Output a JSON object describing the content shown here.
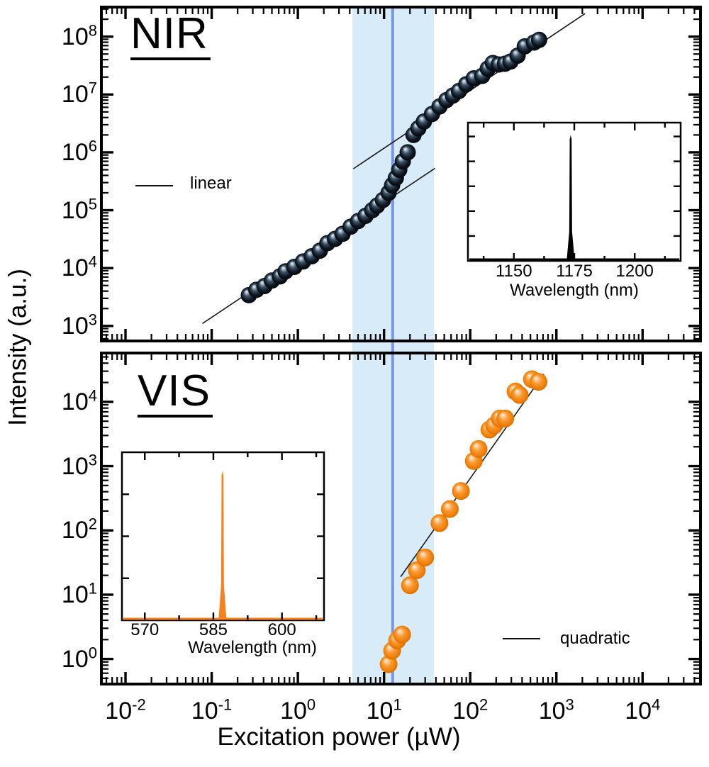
{
  "figure": {
    "x_axis_title": "Excitation power (µW)",
    "y_axis_title": "Intensity (a.u.)",
    "highlight_band": {
      "x_min_uW": 4.3,
      "x_max_uW": 38,
      "color": "#d7ecf8"
    },
    "highlight_line": {
      "x_uW": 12.6,
      "color": "#7b96e6"
    }
  },
  "chart_data": [
    {
      "id": "nir-panel",
      "type": "scatter",
      "title": "NIR",
      "legend": {
        "label": "linear",
        "position": "left-middle"
      },
      "xlabel": "Excitation power (µW)",
      "ylabel": "Intensity (a.u.)",
      "x_scale": "log",
      "y_scale": "log",
      "xlim": [
        0.00525,
        47000
      ],
      "ylim": [
        550,
        324000000
      ],
      "x_major_ticks": [
        0.01,
        0.1,
        1,
        10,
        100,
        1000,
        10000
      ],
      "y_major_ticks": [
        1000,
        10000,
        100000,
        1000000,
        10000000,
        100000000
      ],
      "grid": false,
      "marker_color": "#141e2b",
      "points": [
        [
          0.27,
          3400
        ],
        [
          0.33,
          4200
        ],
        [
          0.41,
          4900
        ],
        [
          0.5,
          6100
        ],
        [
          0.62,
          7200
        ],
        [
          0.72,
          8800
        ],
        [
          0.91,
          10500
        ],
        [
          1.15,
          13000
        ],
        [
          1.45,
          16000
        ],
        [
          1.8,
          20000
        ],
        [
          2.2,
          27000
        ],
        [
          2.7,
          32000
        ],
        [
          3.3,
          39000
        ],
        [
          4.1,
          52000
        ],
        [
          5.0,
          65000
        ],
        [
          6.1,
          80000
        ],
        [
          7.3,
          100000
        ],
        [
          8.3,
          120000
        ],
        [
          9.7,
          150000
        ],
        [
          11.3,
          200000
        ],
        [
          12.4,
          270000
        ],
        [
          13.7,
          360000
        ],
        [
          15.0,
          500000
        ],
        [
          16.5,
          700000
        ],
        [
          18.8,
          1000000
        ],
        [
          22,
          2000000
        ],
        [
          25,
          2600000
        ],
        [
          29,
          3400000
        ],
        [
          36,
          4600000
        ],
        [
          44,
          6200000
        ],
        [
          53,
          8000000
        ],
        [
          63,
          9600000
        ],
        [
          74,
          11500000
        ],
        [
          90,
          15000000
        ],
        [
          110,
          19000000
        ],
        [
          138,
          21000000
        ],
        [
          160,
          28000000
        ],
        [
          183,
          35000000
        ],
        [
          215,
          33000000
        ],
        [
          253,
          34000000
        ],
        [
          293,
          37000000
        ],
        [
          355,
          47000000
        ],
        [
          430,
          68000000
        ],
        [
          550,
          79000000
        ],
        [
          630,
          88000000
        ]
      ],
      "fit_lines": [
        {
          "name": "linear-fit-lower",
          "x": [
            0.078,
            39
          ],
          "y": [
            1100,
            530000
          ]
        },
        {
          "name": "linear-fit-upper",
          "x": [
            4.4,
            2150
          ],
          "y": [
            520000,
            250000000
          ]
        }
      ],
      "inset": {
        "type": "line",
        "xlabel": "Wavelength (nm)",
        "xlim": [
          1131,
          1219
        ],
        "x_major_ticks": [
          1150,
          1175,
          1200
        ],
        "x_minor_ticks": [
          1137.5,
          1162.5,
          1187.5,
          1212.5
        ],
        "peak_nm": 1173.5,
        "peak_rel_height": 0.9,
        "line_color": "#000000"
      }
    },
    {
      "id": "vis-panel",
      "type": "scatter",
      "title": "VIS",
      "legend": {
        "label": "quadratic",
        "position": "right-bottom"
      },
      "xlabel": "Excitation power (µW)",
      "ylabel": "Intensity (a.u.)",
      "x_scale": "log",
      "y_scale": "log",
      "xlim": [
        0.00525,
        47000
      ],
      "ylim": [
        0.407,
        57500
      ],
      "x_major_ticks": [
        0.01,
        0.1,
        1,
        10,
        100,
        1000,
        10000
      ],
      "y_major_ticks": [
        1,
        10,
        100,
        1000,
        10000
      ],
      "grid": false,
      "marker_color": "#f5821f",
      "points": [
        [
          11.3,
          0.83
        ],
        [
          12.4,
          1.35
        ],
        [
          14.2,
          1.95
        ],
        [
          16.2,
          2.4
        ],
        [
          20,
          14
        ],
        [
          24,
          24
        ],
        [
          30,
          38
        ],
        [
          44,
          130
        ],
        [
          58,
          215
        ],
        [
          78,
          410
        ],
        [
          110,
          1200
        ],
        [
          125,
          1850
        ],
        [
          167,
          3700
        ],
        [
          190,
          4300
        ],
        [
          220,
          5500
        ],
        [
          255,
          5500
        ],
        [
          335,
          14500
        ],
        [
          375,
          12800
        ],
        [
          520,
          22500
        ],
        [
          620,
          20500
        ]
      ],
      "fit_lines": [
        {
          "name": "quadratic-fit",
          "x": [
            15.6,
            715
          ],
          "y": [
            19,
            27000
          ]
        }
      ],
      "inset": {
        "type": "line",
        "xlabel": "Wavelength (nm)",
        "xlim": [
          565,
          609.2
        ],
        "x_major_ticks": [
          570,
          585,
          600
        ],
        "x_minor_ticks": [
          577.5,
          592.5,
          607.5
        ],
        "peak_nm": 587,
        "peak_rel_height": 0.88,
        "line_color": "#f5821f"
      }
    }
  ]
}
